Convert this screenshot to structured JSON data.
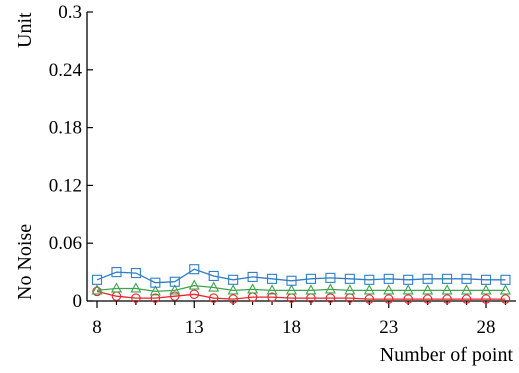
{
  "chart_data": {
    "type": "line",
    "ylabel_top": "Unit",
    "ylabel_side": "No Noise",
    "xlabel": "Number of point",
    "xlim": [
      8,
      29
    ],
    "ylim": [
      0,
      0.3
    ],
    "x_ticks": [
      8,
      13,
      18,
      23,
      28
    ],
    "x_tick_labels": [
      "8",
      "13",
      "18",
      "23",
      "28"
    ],
    "y_ticks": [
      0,
      0.06,
      0.12,
      0.18,
      0.24,
      0.3
    ],
    "y_tick_labels": [
      "0",
      "0.06",
      "0.12",
      "0.18",
      "0.24",
      "0.3"
    ],
    "grid": false,
    "x": [
      8,
      9,
      10,
      11,
      12,
      13,
      14,
      15,
      16,
      17,
      18,
      19,
      20,
      21,
      22,
      23,
      24,
      25,
      26,
      27,
      28,
      29
    ],
    "series": [
      {
        "color": "#2f7ec6",
        "marker": "square",
        "values": [
          0.022,
          0.03,
          0.029,
          0.019,
          0.02,
          0.033,
          0.026,
          0.022,
          0.025,
          0.023,
          0.021,
          0.023,
          0.024,
          0.023,
          0.022,
          0.023,
          0.022,
          0.023,
          0.023,
          0.023,
          0.022,
          0.022
        ]
      },
      {
        "color": "#3fa34d",
        "marker": "triangle",
        "values": [
          0.011,
          0.013,
          0.013,
          0.01,
          0.011,
          0.016,
          0.014,
          0.011,
          0.012,
          0.011,
          0.011,
          0.011,
          0.012,
          0.011,
          0.011,
          0.011,
          0.011,
          0.011,
          0.011,
          0.011,
          0.011,
          0.011
        ]
      },
      {
        "color": "#e8262a",
        "marker": "circle",
        "values": [
          0.01,
          0.005,
          0.003,
          0.003,
          0.005,
          0.007,
          0.003,
          0.002,
          0.004,
          0.004,
          0.003,
          0.003,
          0.003,
          0.003,
          0.002,
          0.002,
          0.002,
          0.002,
          0.002,
          0.002,
          0.002,
          0.002
        ]
      }
    ]
  }
}
